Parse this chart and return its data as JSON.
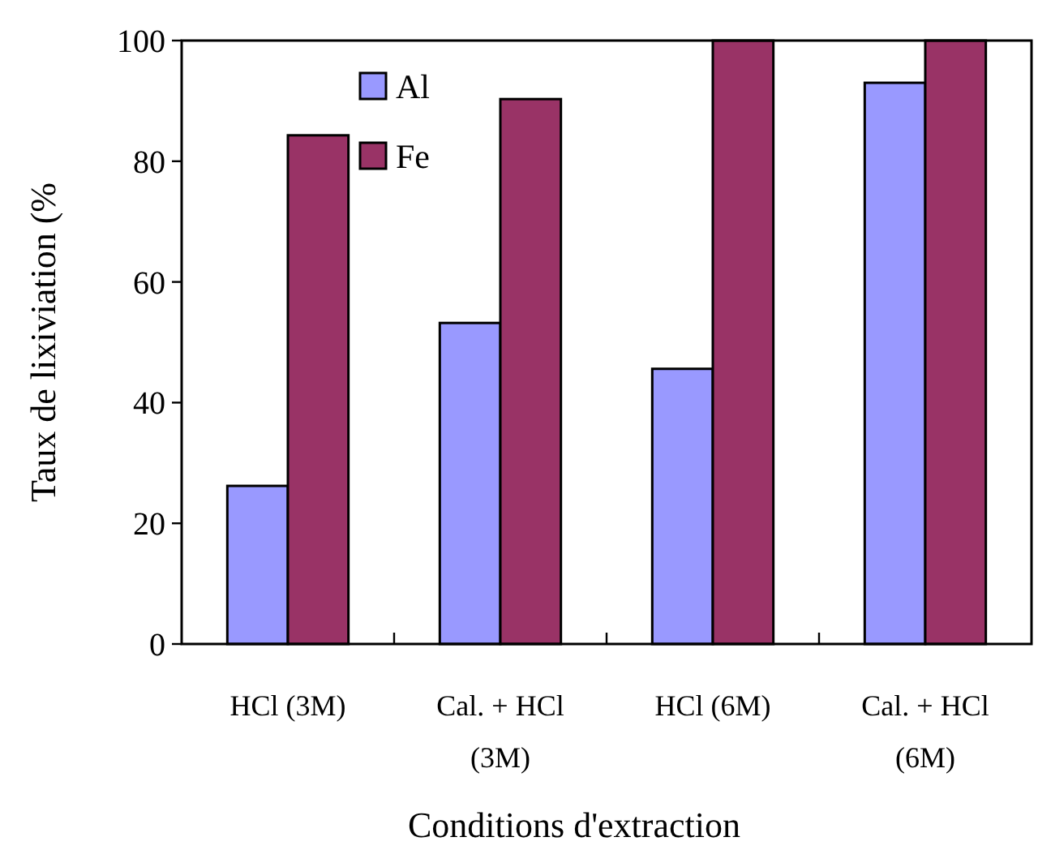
{
  "chart_data": {
    "type": "bar",
    "xlabel": "Conditions d'extraction",
    "ylabel": "Taux de lixiviation (%",
    "categories": [
      "HCl (3M)",
      "Cal. + HCl (3M)",
      "HCl (6M)",
      "Cal. + HCl (6M)"
    ],
    "series": [
      {
        "name": "Al",
        "color": "#9999ff",
        "values": [
          26.2,
          53.2,
          45.6,
          93
        ]
      },
      {
        "name": "Fe",
        "color": "#993366",
        "values": [
          84.3,
          90.3,
          100,
          100
        ]
      }
    ],
    "ylim": [
      0,
      100
    ],
    "yticks": [
      0,
      20,
      40,
      60,
      80,
      100
    ],
    "grid": false,
    "legend": "top left"
  }
}
